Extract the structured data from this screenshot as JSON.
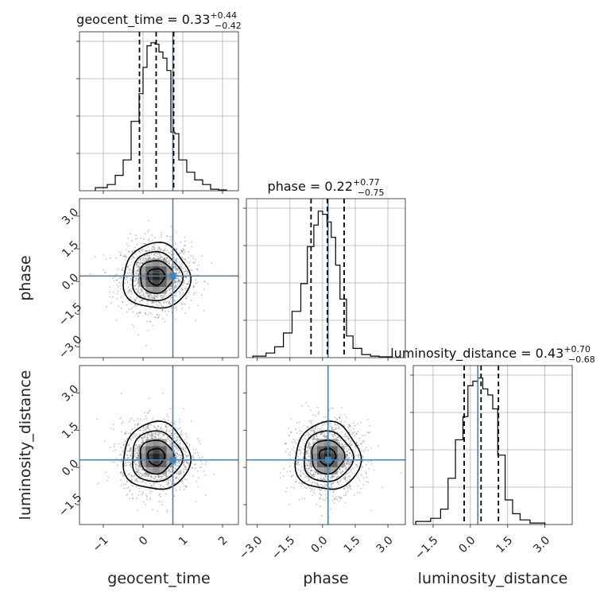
{
  "chart_data": {
    "type": "corner",
    "parameters": [
      "geocent_time",
      "phase",
      "luminosity_distance"
    ],
    "axis_labels": [
      "geocent_time",
      "phase",
      "luminosity_distance"
    ],
    "ranges": [
      [
        -1.6,
        2.4
      ],
      [
        -3.5,
        3.8
      ],
      [
        -2.3,
        4.1
      ]
    ],
    "ticks": {
      "geocent_time": [
        -1,
        0,
        1,
        2
      ],
      "phase": [
        -3.0,
        -1.5,
        0.0,
        1.5,
        3.0
      ],
      "luminosity_distance": [
        -1.5,
        0.0,
        1.5,
        3.0
      ]
    },
    "tick_labels": {
      "geocent_time": [
        "−1",
        "0",
        "1",
        "2"
      ],
      "phase": [
        "−3.0",
        "−1.5",
        "0.0",
        "1.5",
        "3.0"
      ],
      "luminosity_distance": [
        "−1.5",
        "0.0",
        "1.5",
        "3.0"
      ]
    },
    "truths": [
      0.75,
      0.25,
      0.3
    ],
    "truth_color": "#4682b4",
    "grid": true,
    "titles": [
      {
        "prefix": "geocent_time = ",
        "median": "0.33",
        "upper": "+0.44",
        "lower": "−0.42"
      },
      {
        "prefix": "phase = ",
        "median": "0.22",
        "upper": "+0.77",
        "lower": "−0.75"
      },
      {
        "prefix": "luminosity_distance = ",
        "median": "0.43",
        "upper": "+0.70",
        "lower": "−0.68"
      }
    ],
    "quantiles": [
      [
        -0.09,
        0.33,
        0.77
      ],
      [
        -0.53,
        0.22,
        0.99
      ],
      [
        -0.25,
        0.43,
        1.13
      ]
    ],
    "histograms": [
      {
        "bins": [
          -1.2,
          -0.9,
          -0.7,
          -0.5,
          -0.3,
          -0.1,
          0.0,
          0.1,
          0.2,
          0.3,
          0.4,
          0.5,
          0.6,
          0.7,
          0.8,
          0.9,
          1.1,
          1.3,
          1.5,
          1.7,
          1.9,
          2.1
        ],
        "counts": [
          0.02,
          0.04,
          0.1,
          0.2,
          0.45,
          0.63,
          0.8,
          0.94,
          0.96,
          0.95,
          0.9,
          0.86,
          0.78,
          0.38,
          0.37,
          0.2,
          0.12,
          0.07,
          0.04,
          0.01,
          0.005
        ]
      },
      {
        "bins": [
          -3.2,
          -2.6,
          -2.2,
          -1.8,
          -1.4,
          -1.0,
          -0.7,
          -0.4,
          -0.2,
          0.0,
          0.2,
          0.4,
          0.6,
          0.8,
          1.1,
          1.4,
          1.8,
          2.2,
          2.6,
          3.2
        ],
        "counts": [
          0.01,
          0.03,
          0.07,
          0.16,
          0.3,
          0.48,
          0.72,
          0.86,
          0.95,
          0.93,
          0.88,
          0.78,
          0.6,
          0.38,
          0.14,
          0.06,
          0.02,
          0.01,
          0.005
        ]
      },
      {
        "bins": [
          -2.2,
          -1.6,
          -1.2,
          -0.9,
          -0.6,
          -0.3,
          -0.1,
          0.1,
          0.3,
          0.5,
          0.7,
          0.9,
          1.1,
          1.4,
          1.7,
          2.0,
          2.4,
          3.0
        ],
        "counts": [
          0.02,
          0.04,
          0.1,
          0.3,
          0.55,
          0.7,
          0.9,
          0.93,
          0.95,
          0.88,
          0.84,
          0.75,
          0.45,
          0.16,
          0.07,
          0.03,
          0.01
        ]
      }
    ],
    "contours_2d": [
      {
        "x": "geocent_time",
        "y": "phase",
        "center": [
          0.33,
          0.22
        ],
        "sigma": [
          0.42,
          0.75
        ]
      },
      {
        "x": "geocent_time",
        "y": "luminosity_distance",
        "center": [
          0.33,
          0.43
        ],
        "sigma": [
          0.42,
          0.68
        ]
      },
      {
        "x": "phase",
        "y": "luminosity_distance",
        "center": [
          0.22,
          0.43
        ],
        "sigma": [
          0.75,
          0.68
        ]
      }
    ]
  }
}
